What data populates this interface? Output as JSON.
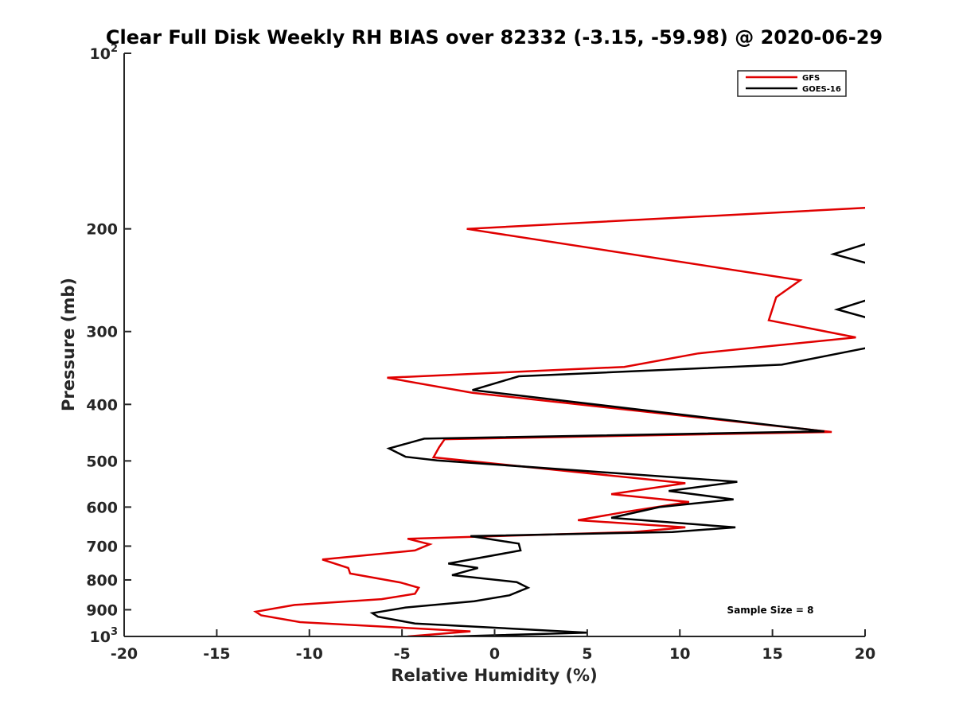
{
  "chart_data": {
    "type": "line",
    "title": "Clear Full Disk Weekly RH BIAS over 82332 (-3.15, -59.98) @ 2020-06-29",
    "xlabel": "Relative Humidity (%)",
    "ylabel": "Pressure (mb)",
    "xlim": [
      -20,
      20
    ],
    "ylim": [
      100,
      1000
    ],
    "yscale": "log",
    "y_reversed": true,
    "grid": false,
    "legend_position": "top-right",
    "x_ticks": [
      -20,
      -15,
      -10,
      -5,
      0,
      5,
      10,
      15,
      20
    ],
    "x_tick_labels": [
      "-20",
      "-15",
      "-10",
      "-5",
      "0",
      "5",
      "10",
      "15",
      "20"
    ],
    "y_ticks": [
      {
        "value": 100,
        "base": "10",
        "exp": "2"
      },
      {
        "value": 200,
        "label": "200"
      },
      {
        "value": 300,
        "label": "300"
      },
      {
        "value": 400,
        "label": "400"
      },
      {
        "value": 500,
        "label": "500"
      },
      {
        "value": 600,
        "label": "600"
      },
      {
        "value": 700,
        "label": "700"
      },
      {
        "value": 800,
        "label": "800"
      },
      {
        "value": 900,
        "label": "900"
      },
      {
        "value": 1000,
        "base": "10",
        "exp": "3"
      }
    ],
    "series": [
      {
        "name": "GFS",
        "color": "#e00000",
        "points": [
          [
            21.5,
            183
          ],
          [
            -1.5,
            200
          ],
          [
            16.5,
            245
          ],
          [
            15.2,
            262
          ],
          [
            14.8,
            287
          ],
          [
            19.5,
            307
          ],
          [
            11,
            327
          ],
          [
            7,
            345
          ],
          [
            -5.8,
            360
          ],
          [
            -1.2,
            382
          ],
          [
            18.2,
            446
          ],
          [
            -2.7,
            459
          ],
          [
            -3,
            474
          ],
          [
            -3.3,
            493
          ],
          [
            10.3,
            546
          ],
          [
            6.3,
            570
          ],
          [
            10.5,
            588
          ],
          [
            7,
            612
          ],
          [
            4.5,
            632
          ],
          [
            10.3,
            650
          ],
          [
            7.5,
            662
          ],
          [
            -4.7,
            680
          ],
          [
            -3.5,
            695
          ],
          [
            -4.3,
            712
          ],
          [
            -9.3,
            738
          ],
          [
            -7.9,
            763
          ],
          [
            -7.8,
            780
          ],
          [
            -5.1,
            808
          ],
          [
            -4.1,
            825
          ],
          [
            -4.3,
            845
          ],
          [
            -6.1,
            863
          ],
          [
            -10.8,
            883
          ],
          [
            -12.9,
            907
          ],
          [
            -12.6,
            920
          ],
          [
            -10.5,
            945
          ],
          [
            -1.3,
            980
          ],
          [
            -4.7,
            1000
          ]
        ]
      },
      {
        "name": "GOES-16",
        "color": "#000000",
        "points": [
          [
            20.1,
            212
          ],
          [
            18.3,
            221
          ],
          [
            20.1,
            229
          ],
          null,
          [
            20.1,
            265
          ],
          [
            18.5,
            275
          ],
          [
            20.1,
            284
          ],
          null,
          [
            20.1,
            320
          ],
          [
            15.5,
            342
          ],
          [
            1.3,
            358
          ],
          [
            -1.2,
            378
          ],
          [
            17.8,
            445
          ],
          [
            -3.8,
            458
          ],
          [
            -5.7,
            476
          ],
          [
            -4.8,
            492
          ],
          [
            -3.1,
            499
          ],
          [
            13.1,
            543
          ],
          [
            9.4,
            563
          ],
          [
            12.9,
            582
          ],
          [
            8.9,
            600
          ],
          [
            6.3,
            626
          ],
          [
            13,
            650
          ],
          [
            9.6,
            662
          ],
          [
            -1.3,
            673
          ],
          [
            1.3,
            693
          ],
          [
            1.4,
            712
          ],
          [
            -2.5,
            750
          ],
          [
            -0.9,
            763
          ],
          [
            -2.3,
            785
          ],
          [
            1.2,
            807
          ],
          [
            1.8,
            825
          ],
          [
            0.8,
            850
          ],
          [
            -1.1,
            870
          ],
          [
            -4.8,
            892
          ],
          [
            -6.6,
            912
          ],
          [
            -6.3,
            925
          ],
          [
            -4.3,
            950
          ],
          [
            5,
            985
          ],
          [
            -2.2,
            1000
          ]
        ]
      }
    ],
    "annotation": "Sample Size = 8"
  }
}
